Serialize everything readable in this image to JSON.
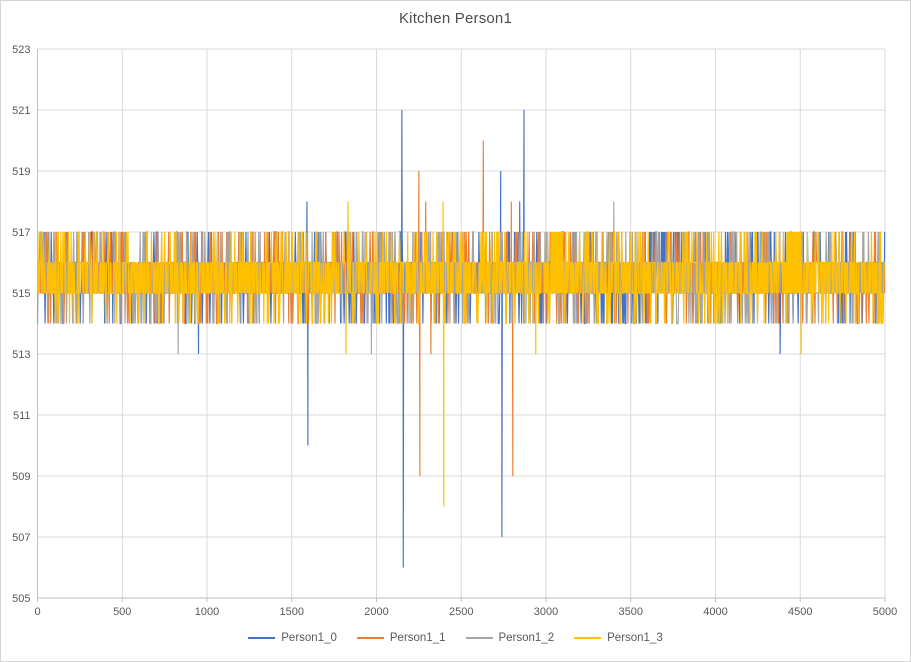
{
  "style": {
    "background": "#ffffff",
    "border_color": "#d4d4d4",
    "title_color": "#4d4d4d",
    "label_color": "#595959",
    "grid_color": "#d9d9d9",
    "axis_color": "#bfbfbf"
  },
  "chart_data": {
    "type": "line",
    "title": "Kitchen Person1",
    "xlabel": "",
    "ylabel": "",
    "x_range": [
      0,
      5000
    ],
    "y_range": [
      505,
      523
    ],
    "x_ticks": [
      0,
      500,
      1000,
      1500,
      2000,
      2500,
      3000,
      3500,
      4000,
      4500,
      5000
    ],
    "y_ticks": [
      505,
      507,
      509,
      511,
      513,
      515,
      517,
      519,
      521,
      523
    ],
    "grid": true,
    "legend_position": "bottom",
    "baseline": {
      "description": "All four series oscillate rapidly between 515 and 516 (solid band), with frequent short excursions to 517 and 514",
      "core": [
        515,
        516
      ],
      "low": 514,
      "high": 517,
      "p_low": 0.09,
      "p_high": 0.1,
      "x_step": 3
    },
    "series": [
      {
        "name": "Person1_0",
        "color": "#4472C4",
        "spikes": [
          [
            950,
            513
          ],
          [
            1590,
            518
          ],
          [
            1595,
            510
          ],
          [
            2150,
            521
          ],
          [
            2158,
            506
          ],
          [
            2733,
            519
          ],
          [
            2740,
            507
          ],
          [
            2845,
            518
          ],
          [
            2870,
            521
          ],
          [
            4381,
            513
          ]
        ],
        "holds": [
          [
            3612,
            3648,
            517
          ],
          [
            3678,
            3720,
            517
          ],
          [
            3752,
            3792,
            517
          ]
        ]
      },
      {
        "name": "Person1_1",
        "color": "#ED7D31",
        "spikes": [
          [
            2250,
            519
          ],
          [
            2256,
            509
          ],
          [
            2290,
            518
          ],
          [
            2321,
            513
          ],
          [
            2630,
            520
          ],
          [
            2795,
            518
          ],
          [
            2804,
            509
          ]
        ],
        "holds": []
      },
      {
        "name": "Person1_2",
        "color": "#A5A5A5",
        "spikes": [
          [
            830,
            513
          ],
          [
            1970,
            513
          ],
          [
            3400,
            518
          ]
        ],
        "holds": []
      },
      {
        "name": "Person1_3",
        "color": "#FFC000",
        "spikes": [
          [
            1820,
            513
          ],
          [
            1831,
            518
          ],
          [
            2393,
            518
          ],
          [
            2397,
            508
          ],
          [
            2940,
            513
          ],
          [
            4505,
            513
          ]
        ],
        "holds": [
          [
            3030,
            3100,
            517
          ],
          [
            4420,
            4500,
            517
          ]
        ]
      }
    ]
  }
}
